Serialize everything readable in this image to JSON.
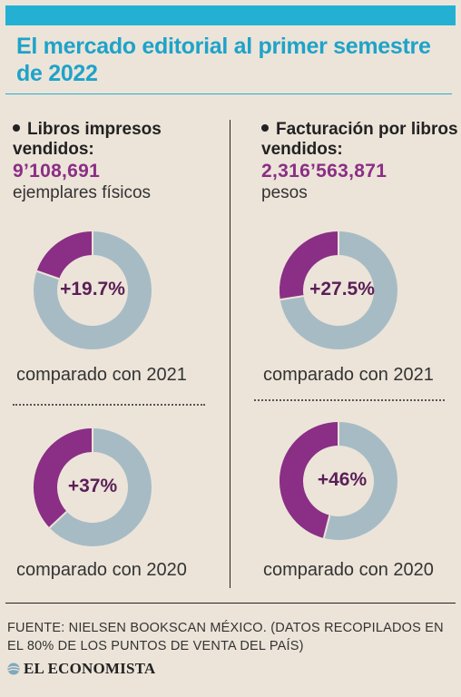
{
  "title": "El mercado editorial al primer semestre de 2022",
  "left": {
    "label": "Libros impresos vendidos:",
    "value": "9’108,691",
    "unit": "ejemplares físicos"
  },
  "right": {
    "label": "Facturación por libros vendidos:",
    "value": "2,316’563,871",
    "unit": "pesos"
  },
  "source": "FUENTE: NIELSEN BOOKSCAN MÉXICO. (DATOS RECOPILADOS EN EL 80% DE LOS PUNTOS DE VENTA DEL PAÍS)",
  "logo_text": "EL ECONOMISTA",
  "colors": {
    "accent": "#23b0d3",
    "purple": "#8b2e85",
    "ring": "#a7bbc5"
  },
  "chart_data": [
    {
      "type": "pie",
      "group": "Libros impresos vendidos",
      "value": "+19.7%",
      "pct": 19.7,
      "caption": "comparado con 2021"
    },
    {
      "type": "pie",
      "group": "Libros impresos vendidos",
      "value": "+37%",
      "pct": 37,
      "caption": "comparado con 2020"
    },
    {
      "type": "pie",
      "group": "Facturación por libros vendidos",
      "value": "+27.5%",
      "pct": 27.5,
      "caption": "comparado con 2021"
    },
    {
      "type": "pie",
      "group": "Facturación por libros vendidos",
      "value": "+46%",
      "pct": 46,
      "caption": "comparado con 2020"
    }
  ]
}
